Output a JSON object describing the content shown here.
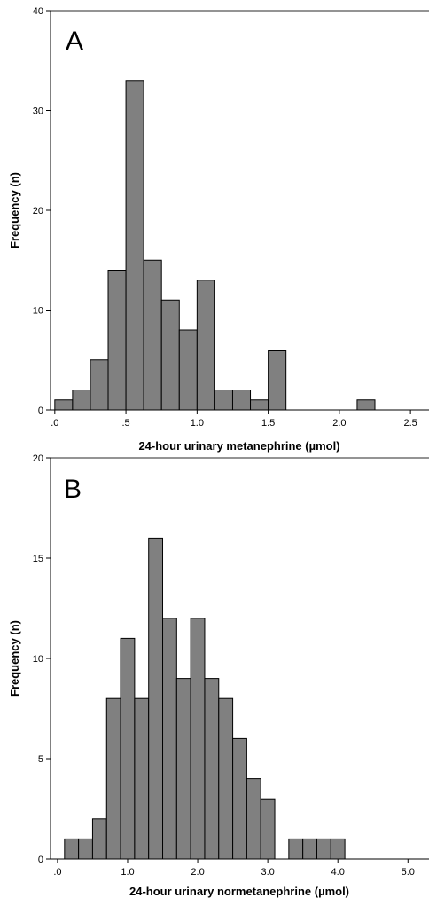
{
  "chart_data": [
    {
      "type": "bar",
      "panel_label": "A",
      "xlabel": "24-hour urinary metanephrine (µmol)",
      "ylabel": "Frequency (n)",
      "bar_color": "#808080",
      "xlim": [
        -0.03,
        2.63
      ],
      "ylim": [
        0,
        40
      ],
      "yticks": [
        0,
        10,
        20,
        30,
        40
      ],
      "ytick_labels": [
        "0",
        "10",
        "20",
        "30",
        "40"
      ],
      "xticks": [
        0,
        0.5,
        1.0,
        1.5,
        2.0,
        2.5
      ],
      "xtick_labels": [
        ".0",
        ".5",
        "1.0",
        "1.5",
        "2.0",
        "2.5"
      ],
      "bin_width": 0.125,
      "bin_starts": [
        0.0,
        0.125,
        0.25,
        0.375,
        0.5,
        0.625,
        0.75,
        0.875,
        1.0,
        1.125,
        1.25,
        1.375,
        1.5,
        2.125
      ],
      "values": [
        1,
        2,
        5,
        14,
        33,
        15,
        11,
        8,
        13,
        2,
        2,
        1,
        6,
        1
      ]
    },
    {
      "type": "bar",
      "panel_label": "B",
      "xlabel": "24-hour urinary normetanephrine (µmol)",
      "ylabel": "Frequency (n)",
      "bar_color": "#808080",
      "xlim": [
        -0.1,
        5.3
      ],
      "ylim": [
        0,
        20
      ],
      "yticks": [
        0,
        5,
        10,
        15,
        20
      ],
      "ytick_labels": [
        "0",
        "5",
        "10",
        "15",
        "20"
      ],
      "xticks": [
        0,
        1,
        2,
        3,
        4,
        5
      ],
      "xtick_labels": [
        ".0",
        "1.0",
        "2.0",
        "3.0",
        "4.0",
        "5.0"
      ],
      "bin_width": 0.2,
      "bin_starts": [
        0.1,
        0.3,
        0.5,
        0.7,
        0.9,
        1.1,
        1.3,
        1.5,
        1.7,
        1.9,
        2.1,
        2.3,
        2.5,
        2.7,
        2.9,
        3.3,
        3.5,
        3.7,
        3.9
      ],
      "values": [
        1,
        1,
        2,
        8,
        11,
        8,
        16,
        12,
        9,
        12,
        9,
        8,
        6,
        4,
        3,
        1,
        1,
        1,
        1
      ]
    }
  ]
}
